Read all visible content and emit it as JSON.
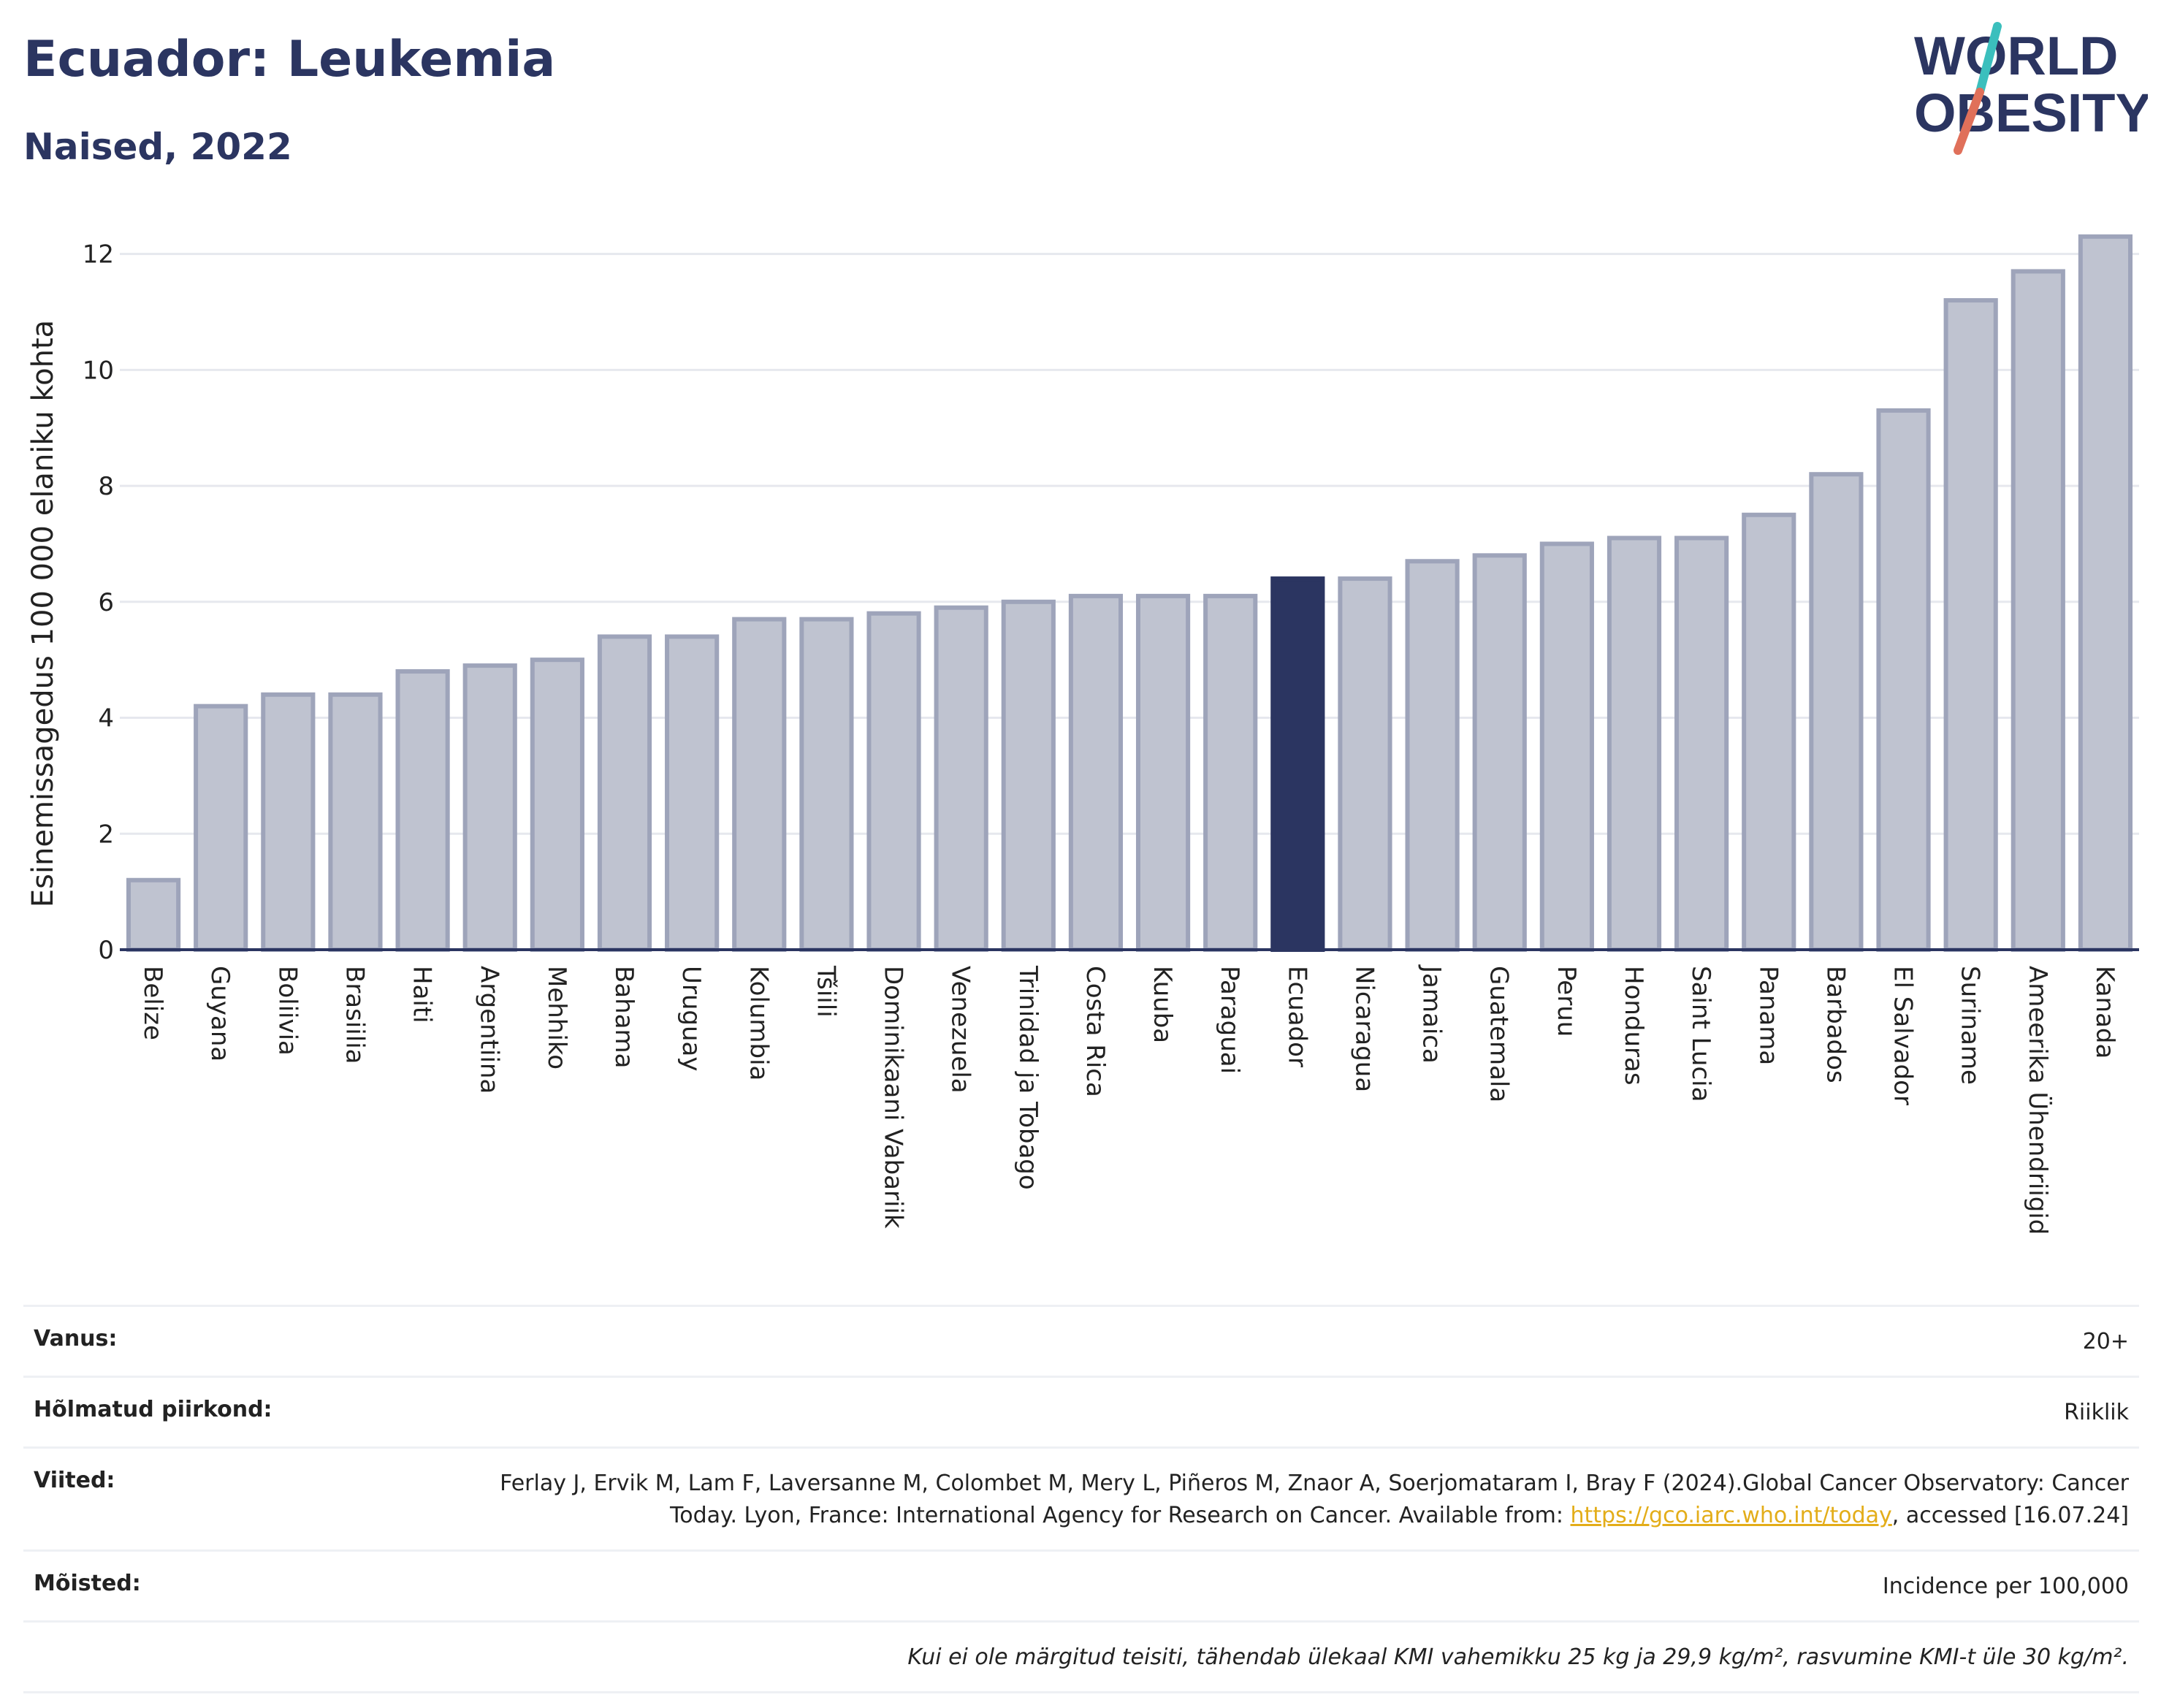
{
  "header": {
    "title": "Ecuador: Leukemia",
    "subtitle": "Naised, 2022"
  },
  "logo": {
    "line1": "WORLD",
    "line2": "OBESITY",
    "slash_color_top": "#3bbfbd",
    "slash_color_bottom": "#e0705a",
    "text_color": "#2b3561"
  },
  "chart_data": {
    "type": "bar",
    "ylabel": "Esinemissagedus 100 000 elaniku kohta",
    "ylim": [
      0,
      12.6
    ],
    "yticks": [
      0,
      2,
      4,
      6,
      8,
      10,
      12
    ],
    "grid": true,
    "categories": [
      "Belize",
      "Guyana",
      "Boliivia",
      "Brasiilia",
      "Haiti",
      "Argentiina",
      "Mehhiko",
      "Bahama",
      "Uruguay",
      "Kolumbia",
      "Tšiili",
      "Dominikaani Vabariik",
      "Venezuela",
      "Trinidad ja Tobago",
      "Costa Rica",
      "Kuuba",
      "Paraguai",
      "Ecuador",
      "Nicaragua",
      "Jamaica",
      "Guatemala",
      "Peruu",
      "Honduras",
      "Saint Lucia",
      "Panama",
      "Barbados",
      "El Salvador",
      "Suriname",
      "Ameerika Ühendriigid",
      "Kanada"
    ],
    "values": [
      1.2,
      4.2,
      4.4,
      4.4,
      4.8,
      4.9,
      5.0,
      5.4,
      5.4,
      5.7,
      5.7,
      5.8,
      5.9,
      6.0,
      6.1,
      6.1,
      6.1,
      6.4,
      6.4,
      6.7,
      6.8,
      7.0,
      7.1,
      7.1,
      7.5,
      8.2,
      9.3,
      11.2,
      11.7,
      12.3
    ],
    "highlight": "Ecuador",
    "colors": {
      "bar_fill": "#bfc3d0",
      "bar_stroke": "#9ea4ba",
      "highlight_fill": "#2b3561",
      "grid": "#e6e8ee",
      "axis": "#2b3561"
    }
  },
  "meta": {
    "rows": [
      {
        "label": "Vanus:",
        "value": "20+"
      },
      {
        "label": "Hõlmatud piirkond:",
        "value": "Riiklik"
      },
      {
        "label": "Viited:",
        "value_before": "Ferlay J, Ervik M, Lam F, Laversanne M, Colombet M, Mery L, Piñeros M, Znaor A, Soerjomataram I, Bray F (2024).Global Cancer Observatory: Cancer Today. Lyon, France: International Agency for Research on Cancer. Available from: ",
        "link": "https://gco.iarc.who.int/today",
        "value_after": ", accessed [16.07.24]"
      },
      {
        "label": "Mõisted:",
        "value": "Incidence per 100,000"
      }
    ],
    "note": "Kui ei ole märgitud teisiti, tähendab ülekaal KMI vahemikku 25 kg ja 29,9 kg/m², rasvumine KMI-t üle 30 kg/m²."
  }
}
